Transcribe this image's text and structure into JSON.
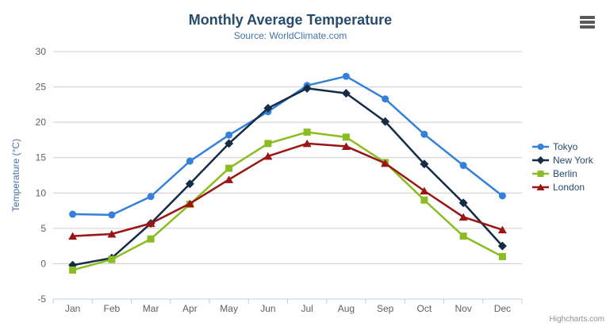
{
  "chart_data": {
    "type": "line",
    "title": "Monthly Average Temperature",
    "subtitle": "Source: WorldClimate.com",
    "xlabel": "",
    "ylabel": "Temperature (°C)",
    "categories": [
      "Jan",
      "Feb",
      "Mar",
      "Apr",
      "May",
      "Jun",
      "Jul",
      "Aug",
      "Sep",
      "Oct",
      "Nov",
      "Dec"
    ],
    "series": [
      {
        "name": "Tokyo",
        "marker": "circle",
        "color": "#3580d8",
        "values": [
          7.0,
          6.9,
          9.5,
          14.5,
          18.2,
          21.5,
          25.2,
          26.5,
          23.3,
          18.3,
          13.9,
          9.6
        ]
      },
      {
        "name": "New York",
        "marker": "diamond",
        "color": "#152c46",
        "values": [
          -0.2,
          0.8,
          5.7,
          11.3,
          17.0,
          22.0,
          24.8,
          24.1,
          20.1,
          14.1,
          8.6,
          2.5
        ]
      },
      {
        "name": "Berlin",
        "marker": "square",
        "color": "#8bbc21",
        "values": [
          -0.9,
          0.6,
          3.5,
          8.4,
          13.5,
          17.0,
          18.6,
          17.9,
          14.3,
          9.0,
          3.9,
          1.0
        ]
      },
      {
        "name": "London",
        "marker": "triangle",
        "color": "#9a1515",
        "values": [
          3.9,
          4.2,
          5.7,
          8.5,
          11.9,
          15.2,
          17.0,
          16.6,
          14.2,
          10.3,
          6.6,
          4.8
        ]
      }
    ],
    "ylim": [
      -5,
      30
    ],
    "ytick_step": 5,
    "grid": true,
    "legend_position": "right"
  },
  "colors": {
    "title": "#274b6d",
    "subtitle": "#4572a7",
    "axis_title": "#4572a7",
    "axis_label": "#606060",
    "grid": "#cccccc",
    "axis_line": "#c0d0e0",
    "legend_text": "#274b6d",
    "credit": "#909090",
    "menu_icon": "#5a5a5a",
    "background": "#ffffff"
  },
  "menu": {
    "icon": "hamburger-icon"
  },
  "credit": {
    "label": "Highcharts.com"
  }
}
